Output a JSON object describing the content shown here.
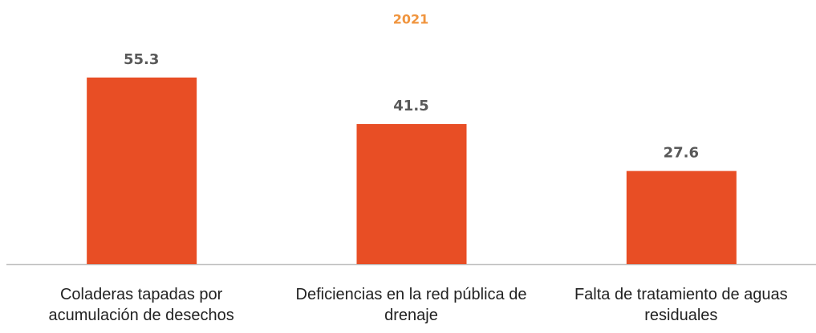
{
  "chart_data": {
    "type": "bar",
    "title": "2021",
    "categories": [
      "Coladeras tapadas por acumulación de desechos",
      "Deficiencias en la red pública de drenaje",
      "Falta de tratamiento de aguas residuales"
    ],
    "values": [
      55.3,
      41.5,
      27.6
    ],
    "color": "#e84e25",
    "ylim": [
      0,
      60
    ]
  }
}
